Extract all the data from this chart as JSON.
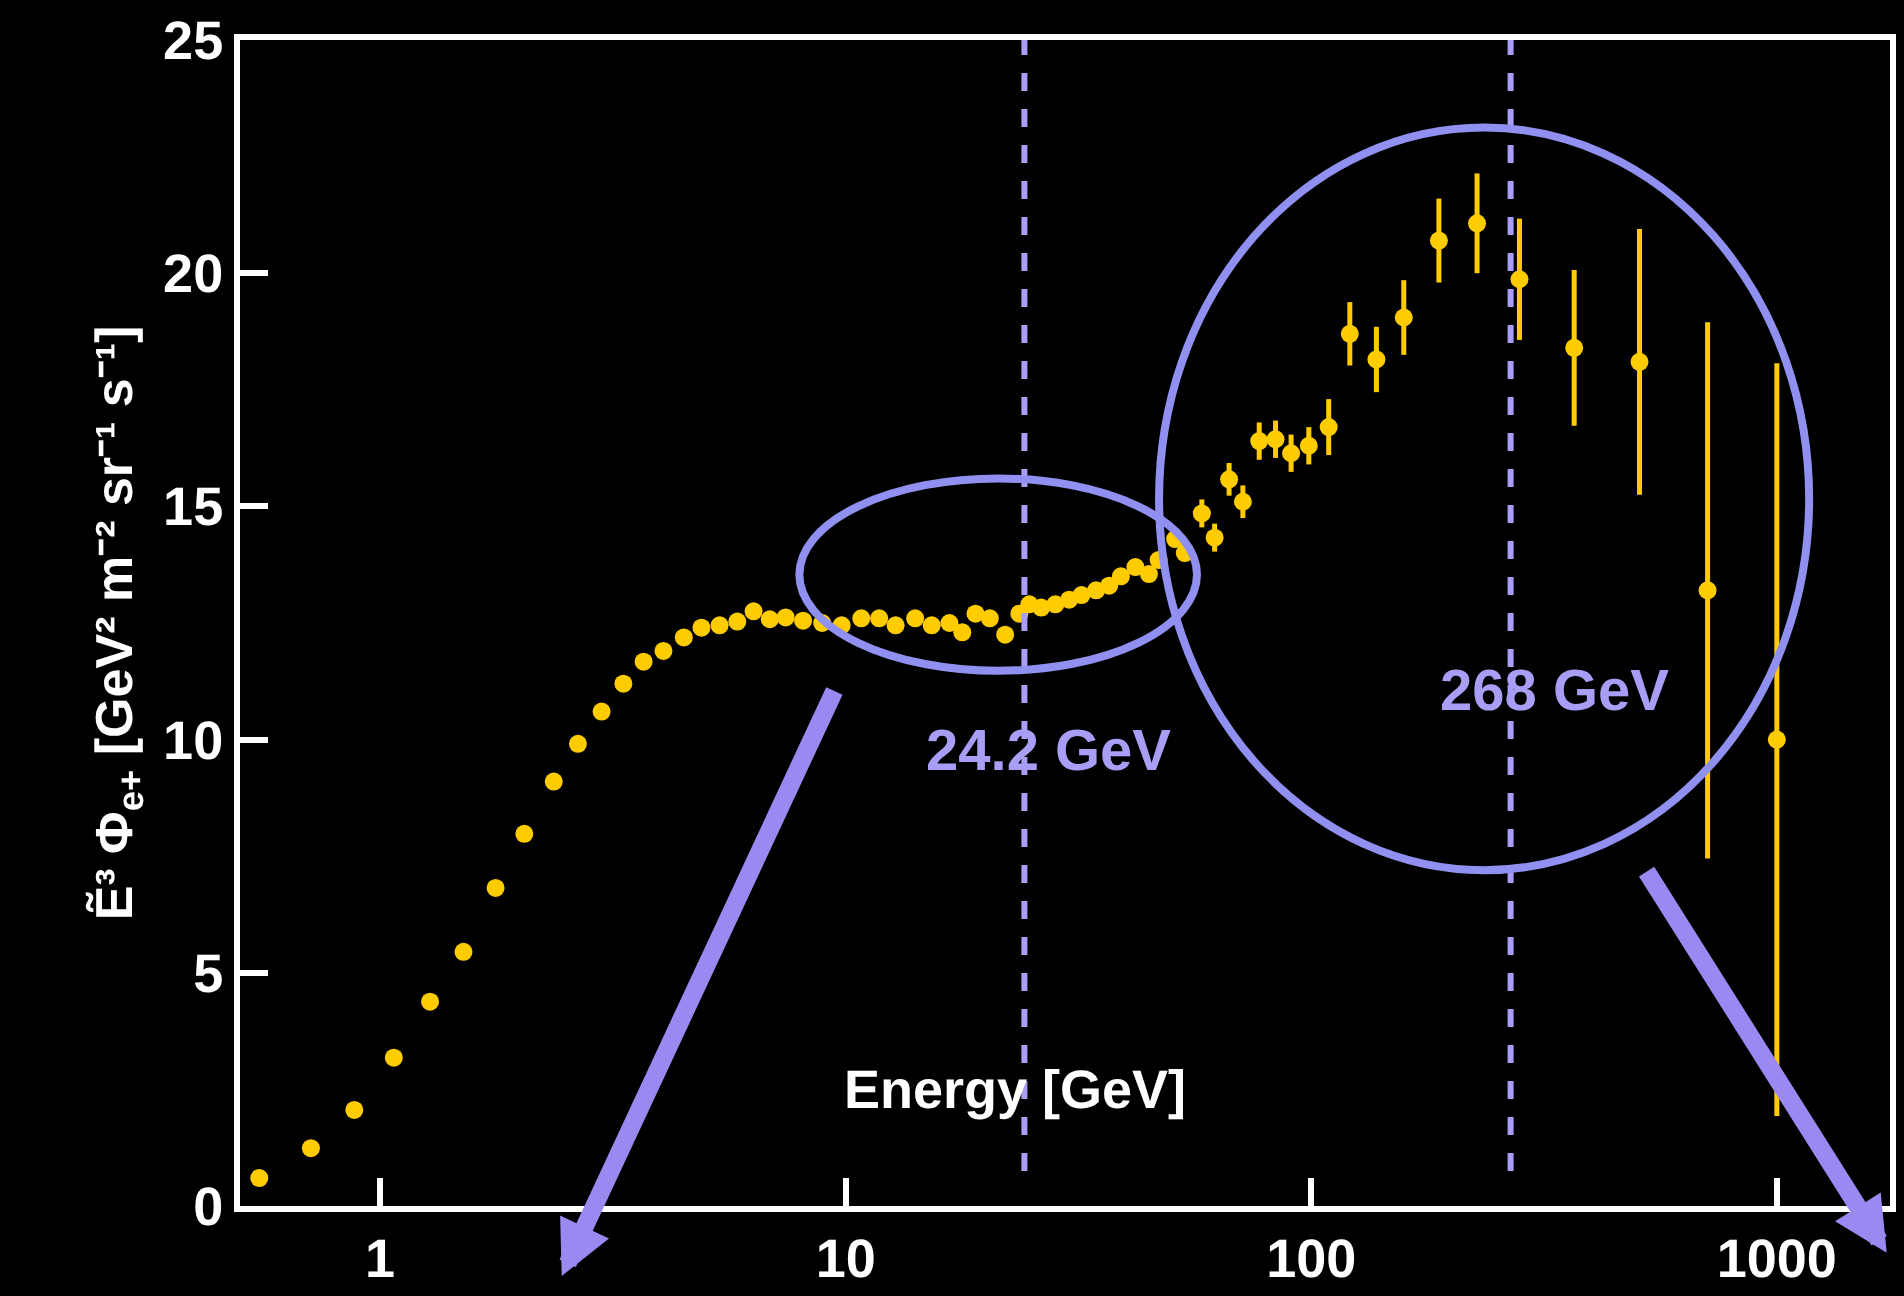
{
  "chart_data": {
    "type": "scatter",
    "xlabel": "Energy [GeV]",
    "ylabel": "Ẽ³ Φ$_{e+}$ [GeV² m⁻² sr⁻¹ s⁻¹]",
    "log": "x",
    "xlim": [
      0.5,
      1750
    ],
    "ylim": [
      0,
      25
    ],
    "xticks": [
      1,
      10,
      100,
      1000
    ],
    "yticks": [
      0,
      5,
      10,
      15,
      20,
      25
    ],
    "grid": false,
    "marker": "circle",
    "series": [
      {
        "color": "#ffcc00",
        "x": [
          0.55,
          0.71,
          0.88,
          1.07,
          1.28,
          1.51,
          1.77,
          2.04,
          2.36,
          2.66,
          2.99,
          3.33,
          3.68,
          4.06,
          4.49,
          4.9,
          5.36,
          5.85,
          6.34,
          6.87,
          7.43,
          8.1,
          8.9,
          9.8,
          10.8,
          11.8,
          12.8,
          14.1,
          15.3,
          16.7,
          17.8,
          19.0,
          20.4,
          22.0,
          23.6,
          24.8,
          26.3,
          28.2,
          30.2,
          32.1,
          34.5,
          36.8,
          39.0,
          41.9,
          44.8,
          47.0,
          51.0,
          53.5,
          58.2,
          62.0,
          66.6,
          71.3,
          77.3,
          83.8,
          90.5,
          98.8,
          109,
          121,
          138,
          158,
          188,
          227,
          280,
          367,
          507,
          710,
          1000
        ],
        "values": [
          0.6,
          1.24,
          2.06,
          3.18,
          4.38,
          5.45,
          6.82,
          7.98,
          9.1,
          9.91,
          10.6,
          11.2,
          11.67,
          11.9,
          12.19,
          12.4,
          12.45,
          12.53,
          12.75,
          12.58,
          12.62,
          12.55,
          12.5,
          12.45,
          12.6,
          12.6,
          12.45,
          12.6,
          12.45,
          12.5,
          12.3,
          12.7,
          12.6,
          12.25,
          12.7,
          12.9,
          12.83,
          12.9,
          13.0,
          13.1,
          13.2,
          13.3,
          13.5,
          13.7,
          13.55,
          13.85,
          14.3,
          14.0,
          14.85,
          14.33,
          15.58,
          15.1,
          16.4,
          16.44,
          16.14,
          16.3,
          16.7,
          18.7,
          18.15,
          19.05,
          20.7,
          21.07,
          19.87,
          18.4,
          18.1,
          13.2,
          10.0
        ],
        "errors": [
          null,
          null,
          null,
          null,
          null,
          null,
          null,
          null,
          null,
          null,
          null,
          null,
          null,
          null,
          null,
          null,
          null,
          null,
          null,
          null,
          null,
          null,
          null,
          null,
          null,
          null,
          null,
          null,
          null,
          null,
          null,
          null,
          null,
          null,
          null,
          null,
          null,
          null,
          null,
          null,
          null,
          null,
          null,
          null,
          null,
          null,
          null,
          null,
          0.3,
          0.3,
          0.35,
          0.35,
          0.4,
          0.4,
          0.4,
          0.4,
          0.6,
          0.68,
          0.7,
          0.8,
          0.9,
          1.07,
          1.3,
          1.67,
          2.85,
          5.75,
          8.07
        ]
      }
    ],
    "ref_lines": [
      {
        "axis": "x",
        "value": 24.2,
        "label": "24.2 GeV",
        "color": "#a99ef5",
        "line_style": "dashed"
      },
      {
        "axis": "x",
        "value": 268,
        "label": "268 GeV",
        "color": "#a99ef5",
        "line_style": "dashed"
      }
    ]
  }
}
